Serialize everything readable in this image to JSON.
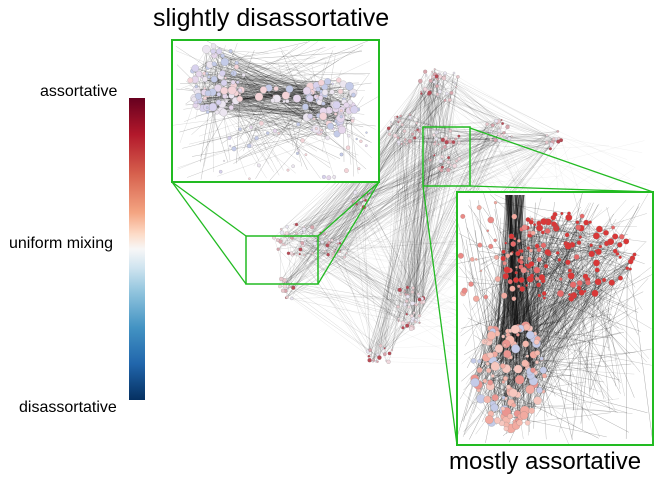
{
  "annotations": {
    "top_title": "slightly disassortative",
    "bottom_title": "mostly assortative"
  },
  "colorbar": {
    "top_label": "assortative",
    "middle_label": "uniform mixing",
    "bottom_label": "disassortative",
    "colors": [
      "#67001f",
      "#b2182b",
      "#d6604d",
      "#f4a582",
      "#fddbc7",
      "#f7f7f7",
      "#d1e5f0",
      "#92c5de",
      "#4393c3",
      "#2166ac",
      "#053061"
    ]
  },
  "colors": {
    "zoom_frame": "#22bb22",
    "edges": "#111111",
    "assortative_node": "#d93838",
    "weak_assortative_node": "#f2aaa0",
    "neutral_node": "#ece6f0",
    "disassortative_node": "#c4cbe8"
  }
}
